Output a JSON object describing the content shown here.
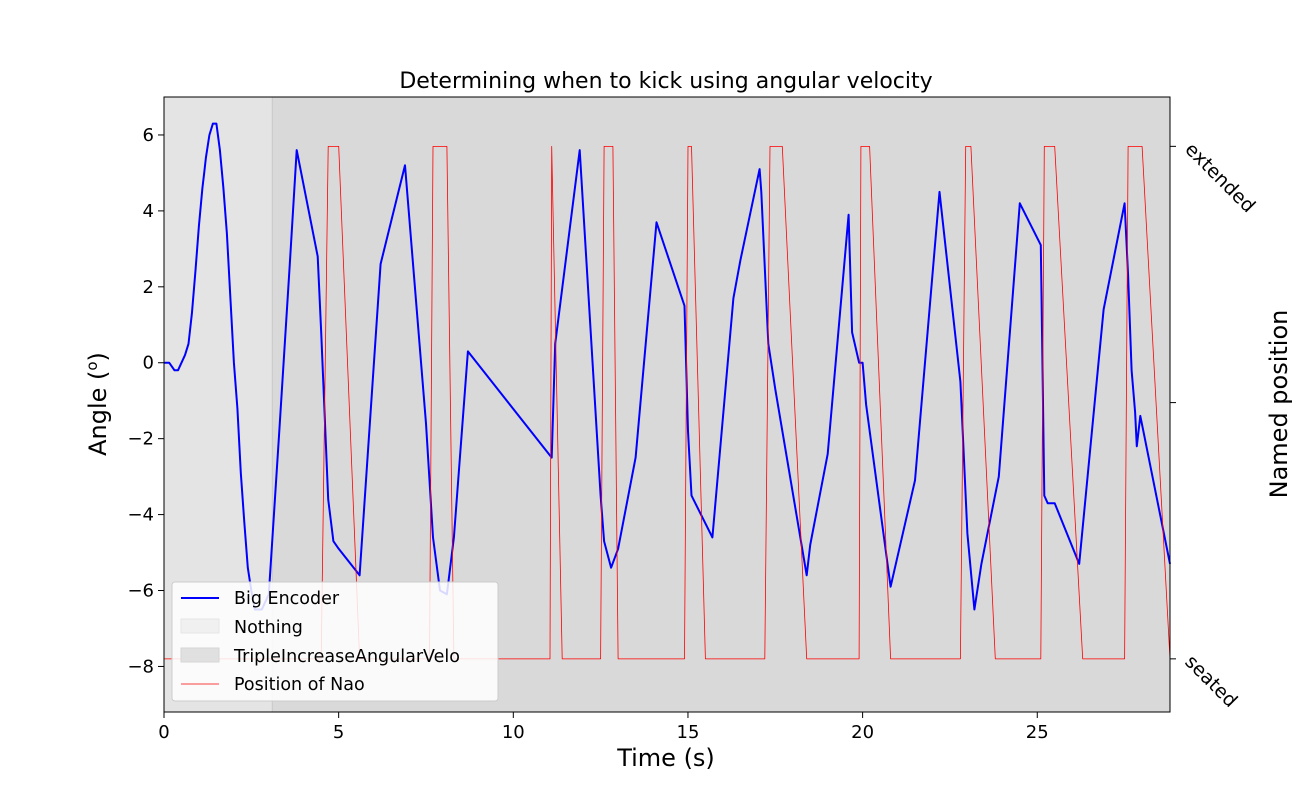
{
  "chart_data": {
    "type": "line",
    "title": "Determining when to kick using angular velocity",
    "xlabel": "Time (s)",
    "ylabel": "Angle (",
    "ylabel_sup": "o",
    "ylabel_close": ")",
    "y2label": "Named position",
    "xlim": [
      0,
      28.8
    ],
    "ylim": [
      -9.2,
      7.0
    ],
    "x_ticks": [
      0,
      5,
      10,
      15,
      20,
      25
    ],
    "y_ticks": [
      -8,
      -6,
      -4,
      -2,
      0,
      2,
      4,
      6
    ],
    "y2_ticks": [
      {
        "value": 5.7,
        "label": "extended"
      },
      {
        "value": -1.05,
        "label": ""
      },
      {
        "value": -7.8,
        "label": "seated"
      }
    ],
    "grid": false,
    "legend_position": "lower-left",
    "colors": {
      "nothing_span": "#e4e4e4",
      "triple_span": "#d9d9d9",
      "big_encoder": "#0000ff",
      "nao": "#ff0000",
      "nothing_legend": "#f0f0f0",
      "triple_legend": "#e0e0e0"
    },
    "spans": [
      {
        "name": "Nothing",
        "x": [
          0,
          3.1
        ]
      },
      {
        "name": "TripleIncreaseAngularVelo",
        "x": [
          3.1,
          28.8
        ]
      }
    ],
    "series": [
      {
        "name": "Big Encoder",
        "x": [
          0.0,
          0.15,
          0.3,
          0.4,
          0.5,
          0.6,
          0.7,
          0.8,
          0.9,
          1.0,
          1.1,
          1.15,
          1.2,
          1.3,
          1.4,
          1.5,
          1.6,
          1.7,
          1.8,
          1.9,
          2.0,
          2.1,
          2.2,
          2.3,
          2.4,
          2.5,
          2.6,
          2.7,
          2.8,
          2.9,
          3.0,
          3.3,
          3.6,
          3.8,
          4.4,
          4.5,
          4.7,
          4.85,
          5.0,
          5.6,
          6.2,
          6.9,
          7.5,
          7.7,
          7.9,
          8.1,
          8.3,
          8.7,
          11.1,
          11.2,
          11.9,
          12.5,
          12.6,
          12.8,
          13.0,
          13.5,
          14.1,
          14.9,
          15.0,
          15.1,
          15.7,
          16.3,
          16.5,
          17.05,
          17.1,
          17.3,
          17.5,
          18.4,
          18.5,
          19.0,
          19.6,
          19.7,
          19.9,
          20.0,
          20.1,
          20.8,
          21.5,
          22.2,
          22.8,
          23.0,
          23.2,
          23.4,
          23.9,
          24.5,
          25.1,
          25.2,
          25.3,
          25.5,
          26.2,
          26.9,
          27.5,
          27.6,
          27.7,
          27.8,
          27.85,
          27.95,
          28.8
        ],
        "y": [
          0.0,
          0.0,
          -0.2,
          -0.2,
          0.0,
          0.2,
          0.5,
          1.3,
          2.4,
          3.6,
          4.6,
          5.0,
          5.4,
          6.0,
          6.3,
          6.3,
          5.6,
          4.6,
          3.4,
          1.7,
          0.0,
          -1.2,
          -2.9,
          -4.2,
          -5.4,
          -6.0,
          -6.5,
          -6.5,
          -6.5,
          -6.3,
          -6.1,
          -1.8,
          2.6,
          5.6,
          2.8,
          0.8,
          -3.6,
          -4.7,
          -4.9,
          -5.6,
          2.6,
          5.2,
          -1.6,
          -4.6,
          -6.0,
          -6.1,
          -4.6,
          0.3,
          -2.5,
          0.5,
          5.6,
          -3.5,
          -4.7,
          -5.4,
          -4.9,
          -2.5,
          3.7,
          1.5,
          -1.8,
          -3.5,
          -4.6,
          1.7,
          2.7,
          5.1,
          4.5,
          0.5,
          -0.7,
          -5.6,
          -4.8,
          -2.4,
          3.9,
          0.8,
          0.0,
          0.0,
          -1.1,
          -5.9,
          -3.1,
          4.5,
          -0.5,
          -4.5,
          -6.5,
          -5.3,
          -3.0,
          4.2,
          3.1,
          -3.5,
          -3.7,
          -3.7,
          -5.3,
          1.4,
          4.2,
          2.3,
          -0.2,
          -1.3,
          -2.2,
          -1.4,
          -5.3
        ]
      },
      {
        "name": "Position of Nao",
        "x": [
          0,
          4.5,
          4.7,
          5.0,
          5.6,
          5.75,
          7.6,
          7.7,
          8.1,
          8.3,
          11.05,
          11.1,
          11.4,
          11.85,
          12.5,
          12.6,
          12.85,
          13.0,
          13.6,
          14.9,
          15.0,
          15.1,
          15.5,
          17.2,
          17.35,
          17.7,
          18.4,
          19.9,
          19.95,
          20.2,
          20.8,
          22.8,
          22.95,
          23.1,
          23.8,
          25.1,
          25.2,
          25.5,
          26.3,
          27.5,
          27.6,
          28.0,
          28.8
        ],
        "y": [
          -7.8,
          -7.8,
          5.7,
          5.7,
          -7.8,
          -7.8,
          -7.8,
          5.7,
          5.7,
          -7.8,
          -7.8,
          5.7,
          -7.8,
          -7.8,
          -7.8,
          5.7,
          5.7,
          -7.8,
          -7.8,
          -7.8,
          5.7,
          5.7,
          -7.8,
          -7.8,
          5.7,
          5.7,
          -7.8,
          -7.8,
          5.7,
          5.7,
          -7.8,
          -7.8,
          5.7,
          5.7,
          -7.8,
          -7.8,
          5.7,
          5.7,
          -7.8,
          -7.8,
          5.7,
          5.7,
          -7.8
        ]
      }
    ],
    "legend_entries": [
      {
        "label": "Big Encoder",
        "kind": "line"
      },
      {
        "label": "Nothing",
        "kind": "patch"
      },
      {
        "label": "TripleIncreaseAngularVelo",
        "kind": "patch"
      },
      {
        "label": "Position of Nao",
        "kind": "thin-line"
      }
    ]
  }
}
